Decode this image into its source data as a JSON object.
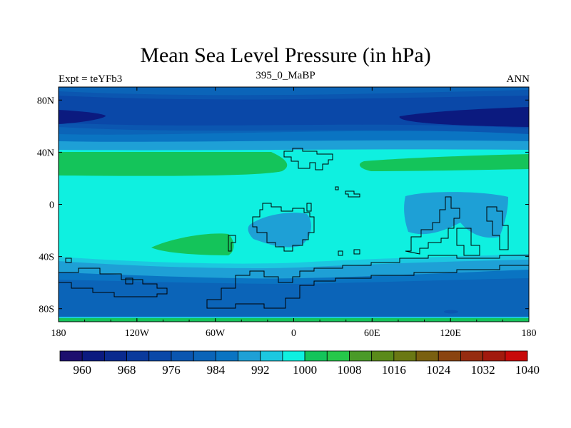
{
  "title": "Mean Sea Level Pressure (in hPa)",
  "subtitle_left": "Expt = teYFb3",
  "subtitle_center": "395_0_MaBP",
  "subtitle_right": "ANN",
  "colors": {
    "c960": "#1d0f6e",
    "c964": "#0b1a7f",
    "c968": "#0a2a8e",
    "c972": "#0a3a9c",
    "c976": "#0a48a8",
    "c980": "#0b56b0",
    "c984": "#0b64b8",
    "c988": "#0a74c2",
    "c992": "#1ea0d6",
    "c996": "#1cc8e0",
    "c1000": "#0ff0e0",
    "c1004": "#14c45a",
    "c1008": "#26c84a",
    "c1012": "#4a9a28",
    "c1016": "#5a8a1a",
    "c1020": "#6a7814",
    "c1024": "#7a6010",
    "c1028": "#8a4410",
    "c1032": "#962c10",
    "c1036": "#a21a0e",
    "c1040": "#c80a0a"
  },
  "chart_data": {
    "type": "contour-map",
    "variable": "Mean Sea Level Pressure",
    "units": "hPa",
    "x_axis": {
      "range": [
        -180,
        180
      ],
      "ticks": [
        -180,
        -120,
        -60,
        0,
        60,
        120,
        180
      ],
      "tick_labels": [
        "180",
        "120W",
        "60W",
        "0",
        "60E",
        "120E",
        "180"
      ]
    },
    "y_axis": {
      "range": [
        -90,
        90
      ],
      "ticks": [
        80,
        40,
        0,
        -40,
        -80
      ],
      "tick_labels": [
        "80N",
        "40N",
        "0",
        "40S",
        "80S"
      ]
    },
    "colorbar": {
      "levels": [
        960,
        964,
        968,
        972,
        976,
        980,
        984,
        988,
        992,
        996,
        1000,
        1004,
        1008,
        1012,
        1016,
        1020,
        1024,
        1028,
        1032,
        1036,
        1040
      ],
      "labels": [
        "960",
        "968",
        "976",
        "984",
        "992",
        "1000",
        "1008",
        "1016",
        "1024",
        "1032",
        "1040"
      ],
      "colors": [
        "#1d0f6e",
        "#0b1a7f",
        "#0a2a8e",
        "#0a3a9c",
        "#0a48a8",
        "#0b56b0",
        "#0b64b8",
        "#0a74c2",
        "#1ea0d6",
        "#1cc8e0",
        "#0ff0e0",
        "#14c45a",
        "#26c84a",
        "#4a9a28",
        "#5a8a1a",
        "#6a7814",
        "#7a6010",
        "#8a4410",
        "#962c10",
        "#a21a0e",
        "#c80a0a"
      ]
    }
  }
}
